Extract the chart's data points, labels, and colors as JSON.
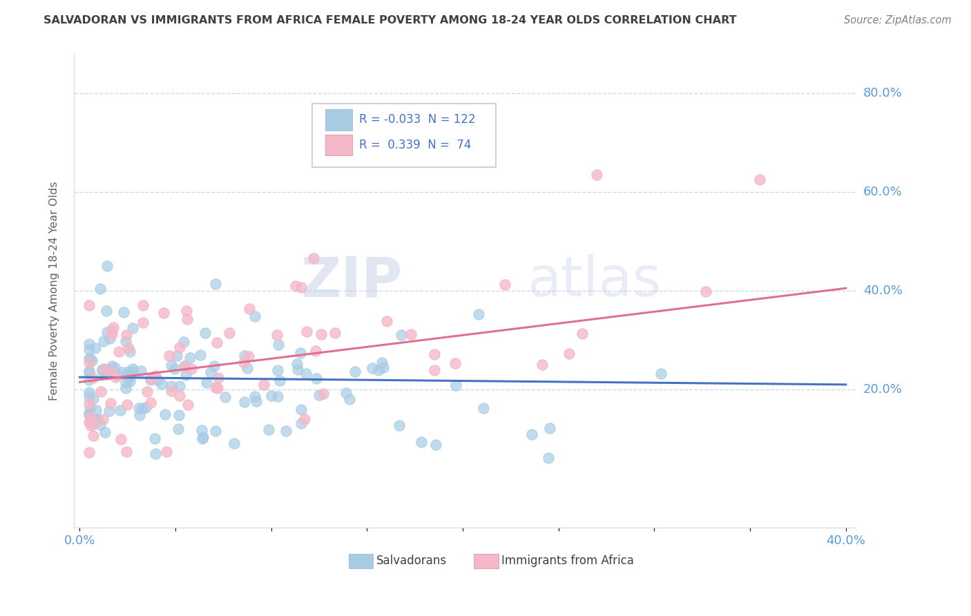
{
  "title": "SALVADORAN VS IMMIGRANTS FROM AFRICA FEMALE POVERTY AMONG 18-24 YEAR OLDS CORRELATION CHART",
  "source": "Source: ZipAtlas.com",
  "ylabel": "Female Poverty Among 18-24 Year Olds",
  "xlim": [
    0.0,
    0.4
  ],
  "ylim": [
    -0.08,
    0.88
  ],
  "ytick_positions": [
    0.2,
    0.4,
    0.6,
    0.8
  ],
  "ytick_labels": [
    "20.0%",
    "40.0%",
    "60.0%",
    "80.0%"
  ],
  "xtick_positions": [
    0.0,
    0.05,
    0.1,
    0.15,
    0.2,
    0.25,
    0.3,
    0.35,
    0.4
  ],
  "xtick_labels": [
    "0.0%",
    "",
    "",
    "",
    "",
    "",
    "",
    "",
    "40.0%"
  ],
  "blue_color": "#a8cce4",
  "pink_color": "#f4b8c8",
  "line_blue": "#4472c4",
  "line_pink": "#e07090",
  "R_blue": -0.033,
  "N_blue": 122,
  "R_pink": 0.339,
  "N_pink": 74,
  "legend_label_blue": "Salvadorans",
  "legend_label_pink": "Immigrants from Africa",
  "watermark_zip": "ZIP",
  "watermark_atlas": "atlas",
  "title_color": "#404040",
  "tick_label_color": "#5b9bd5",
  "legend_text_color": "#4472c4",
  "grid_color": "#d0d8e8",
  "blue_line_y_start": 0.225,
  "blue_line_y_end": 0.21,
  "pink_line_y_start": 0.215,
  "pink_line_y_end": 0.405
}
